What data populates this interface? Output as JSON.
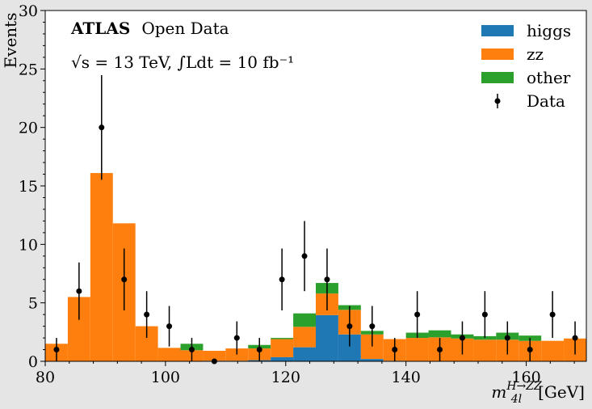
{
  "chart_data": {
    "type": "bar",
    "stacked": true,
    "annotation": {
      "experiment": "ATLAS",
      "subtitle": "Open Data",
      "energy": "√s = 13 TeV, ∫Ldt =  10 fb⁻¹"
    },
    "ylabel": "Events",
    "xlabel": "m_4l^(H→ZZ) [GeV]",
    "xlabel_main": "m",
    "xlabel_sup": "H→ZZ",
    "xlabel_sub": "4l",
    "xlabel_unit": "[GeV]",
    "xlim": [
      80,
      170
    ],
    "ylim": [
      0,
      30
    ],
    "xticks": [
      80,
      100,
      120,
      140,
      160
    ],
    "yticks": [
      0,
      5,
      10,
      15,
      20,
      25,
      30
    ],
    "grid": false,
    "legend_position": "top-right",
    "bins": {
      "start": 80,
      "width": 3.75,
      "edges": [
        80,
        83.75,
        87.5,
        91.25,
        95,
        98.75,
        102.5,
        106.25,
        110,
        113.75,
        117.5,
        121.25,
        125,
        128.75,
        132.5,
        136.25,
        140,
        143.75,
        147.5,
        151.25,
        155,
        158.75,
        162.5,
        166.25,
        170
      ]
    },
    "series": [
      {
        "name": "higgs",
        "color": "#1f77b4",
        "values": [
          0,
          0,
          0,
          0,
          0,
          0,
          0,
          0.05,
          0.05,
          0.1,
          0.35,
          1.2,
          3.95,
          2.3,
          0.2,
          0.05,
          0,
          0,
          0,
          0,
          0,
          0,
          0,
          0
        ]
      },
      {
        "name": "zz",
        "color": "#ff7f0e",
        "values": [
          1.5,
          5.5,
          16.1,
          11.8,
          3.0,
          1.15,
          0.95,
          0.85,
          1.05,
          1.0,
          1.55,
          1.75,
          1.85,
          2.1,
          2.1,
          1.85,
          2.0,
          2.05,
          1.95,
          1.85,
          1.85,
          1.75,
          1.75,
          1.95
        ]
      },
      {
        "name": "other",
        "color": "#2ca02c",
        "values": [
          0,
          0,
          0,
          0,
          0,
          0,
          0.55,
          0,
          0,
          0.3,
          0.1,
          1.15,
          0.9,
          0.4,
          0.3,
          0,
          0.45,
          0.6,
          0.35,
          0.3,
          0.6,
          0.45,
          0,
          0
        ]
      }
    ],
    "data": {
      "name": "Data",
      "color": "#000000",
      "x": [
        81.875,
        85.625,
        89.375,
        93.125,
        96.875,
        100.625,
        104.375,
        108.125,
        111.875,
        115.625,
        119.375,
        123.125,
        126.875,
        130.625,
        134.375,
        138.125,
        141.875,
        145.625,
        149.375,
        153.125,
        156.875,
        160.625,
        164.375,
        168.125
      ],
      "y": [
        1,
        6,
        20,
        7,
        4,
        3,
        1,
        0,
        2,
        1,
        7,
        9,
        7,
        3,
        3,
        1,
        4,
        1,
        2,
        4,
        2,
        1,
        4,
        2
      ]
    }
  }
}
